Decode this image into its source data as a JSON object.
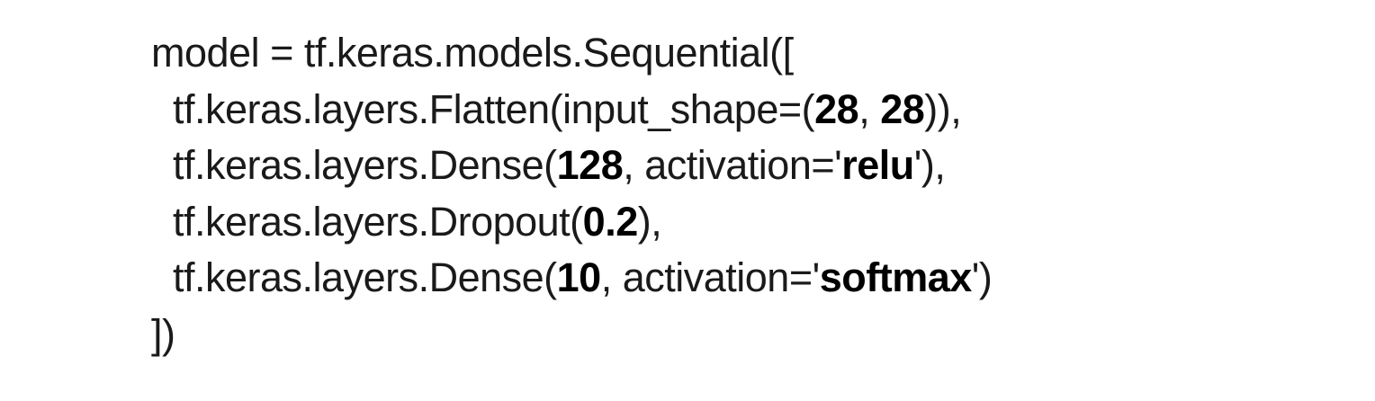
{
  "code": {
    "lines": [
      [
        {
          "text": "model = tf.keras.models.Sequential([",
          "bold": false
        }
      ],
      [
        {
          "text": "  tf.keras.layers.Flatten(input_shape=(",
          "bold": false
        },
        {
          "text": "28",
          "bold": true
        },
        {
          "text": ", ",
          "bold": false
        },
        {
          "text": "28",
          "bold": true
        },
        {
          "text": ")),",
          "bold": false
        }
      ],
      [
        {
          "text": "  tf.keras.layers.Dense(",
          "bold": false
        },
        {
          "text": "128",
          "bold": true
        },
        {
          "text": ", activation='",
          "bold": false
        },
        {
          "text": "relu",
          "bold": true
        },
        {
          "text": "'),",
          "bold": false
        }
      ],
      [
        {
          "text": "  tf.keras.layers.Dropout(",
          "bold": false
        },
        {
          "text": "0.2",
          "bold": true
        },
        {
          "text": "),",
          "bold": false
        }
      ],
      [
        {
          "text": "  tf.keras.layers.Dense(",
          "bold": false
        },
        {
          "text": "10",
          "bold": true
        },
        {
          "text": ", activation='",
          "bold": false
        },
        {
          "text": "softmax",
          "bold": true
        },
        {
          "text": "')",
          "bold": false
        }
      ],
      [
        {
          "text": "])",
          "bold": false
        }
      ]
    ]
  }
}
